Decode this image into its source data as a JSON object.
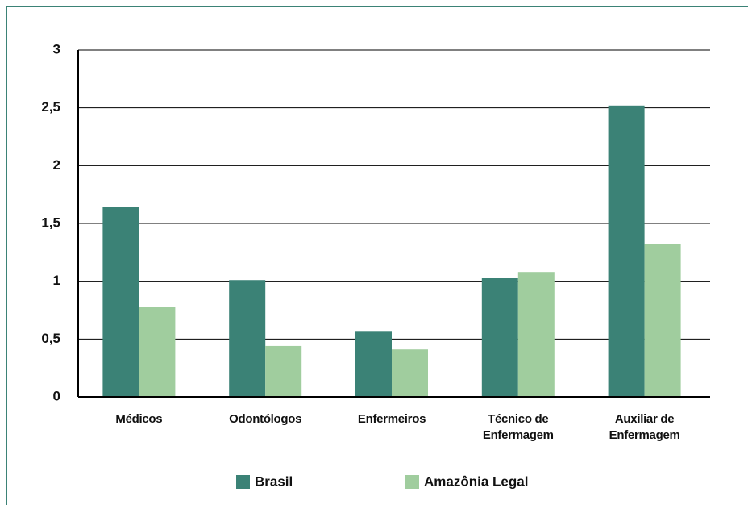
{
  "chart_data": {
    "type": "bar",
    "categories": [
      "Médicos",
      "Odontólogos",
      "Enfermeiros",
      "Técnico de Enfermagem",
      "Auxiliar de Enfermagem"
    ],
    "series": [
      {
        "name": "Brasil",
        "color": "#3b8276",
        "values": [
          1.64,
          1.01,
          0.57,
          1.03,
          2.52
        ]
      },
      {
        "name": "Amazônia Legal",
        "color": "#a0cd9e",
        "values": [
          0.78,
          0.44,
          0.41,
          1.08,
          1.32
        ]
      }
    ],
    "ylim": [
      0,
      3
    ],
    "yticks": [
      0,
      {
        "value": 0.5,
        "label": "0,5"
      },
      1,
      {
        "value": 1.5,
        "label": "1,5"
      },
      2,
      {
        "value": 2.5,
        "label": "2,5"
      },
      3
    ],
    "grid": true
  }
}
